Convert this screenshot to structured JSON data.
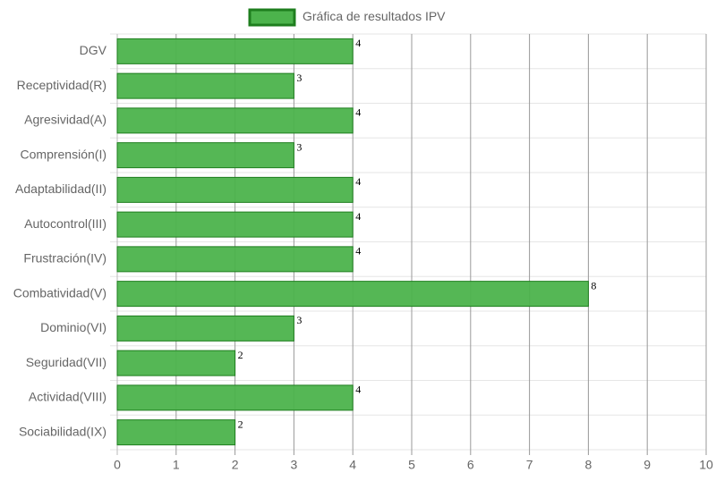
{
  "chart_data": {
    "type": "bar",
    "orientation": "horizontal",
    "legend": "Gráfica de resultados IPV",
    "categories": [
      "DGV",
      "Receptividad(R)",
      "Agresividad(A)",
      "Comprensión(I)",
      "Adaptabilidad(II)",
      "Autocontrol(III)",
      "Frustración(IV)",
      "Combatividad(V)",
      "Dominio(VI)",
      "Seguridad(VII)",
      "Actividad(VIII)",
      "Sociabilidad(IX)"
    ],
    "values": [
      4,
      3,
      4,
      3,
      4,
      4,
      4,
      8,
      3,
      2,
      4,
      2
    ],
    "color": "#4cb34c",
    "border_color": "#1e7e1e",
    "xlim": [
      0,
      10
    ],
    "xticks": [
      0,
      1,
      2,
      3,
      4,
      5,
      6,
      7,
      8,
      9,
      10
    ],
    "grid": true
  }
}
